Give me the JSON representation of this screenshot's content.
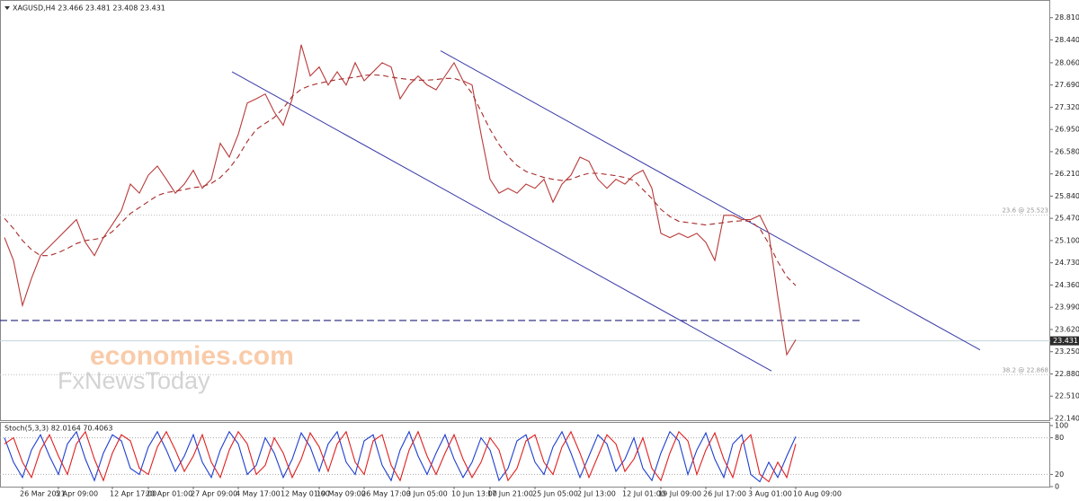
{
  "header": {
    "text": "XAGUSD,H4  23.466 23.481 23.408 23.431"
  },
  "watermark": {
    "brand": "economies.com",
    "sub": "FxNewsToday"
  },
  "chart_data": [
    {
      "type": "line",
      "categories": [
        null,
        null,
        "26 Mar 2021",
        null,
        null,
        null,
        "5 Apr 09:00",
        null,
        null,
        null,
        null,
        null,
        "12 Apr 17:00",
        null,
        null,
        null,
        "20 Apr 01:00",
        null,
        null,
        null,
        null,
        "27 Apr 09:00",
        null,
        null,
        null,
        null,
        "4 May 17:00",
        null,
        null,
        null,
        null,
        "12 May 01:00",
        null,
        null,
        null,
        "19 May 09:00",
        null,
        null,
        null,
        null,
        "26 May 17:00",
        null,
        null,
        null,
        null,
        "3 Jun 05:00",
        null,
        null,
        null,
        null,
        "10 Jun 13:00",
        null,
        null,
        null,
        "17 Jun 21:00",
        null,
        null,
        null,
        null,
        "25 Jun 05:00",
        null,
        null,
        null,
        null,
        "2 Jul 13:00",
        null,
        null,
        null,
        null,
        "12 Jul 01:00",
        null,
        null,
        null,
        "19 Jul 09:00",
        null,
        null,
        null,
        null,
        "26 Jul 17:00",
        null,
        null,
        null,
        null,
        "3 Aug 01:00",
        null,
        null,
        null,
        null,
        "10 Aug 09:00"
      ],
      "series": [
        {
          "color": "#b83a3a",
          "dashed": false,
          "values": [
            25.15,
            24.77,
            24.02,
            24.47,
            24.85,
            25.0,
            25.15,
            25.3,
            25.45,
            25.07,
            24.85,
            25.15,
            25.37,
            25.6,
            26.04,
            25.89,
            26.19,
            26.34,
            26.12,
            25.89,
            26.04,
            26.27,
            25.97,
            26.12,
            26.72,
            26.49,
            26.87,
            27.39,
            27.46,
            27.54,
            27.24,
            27.02,
            27.46,
            28.36,
            27.84,
            27.99,
            27.69,
            27.91,
            27.69,
            28.06,
            27.76,
            27.91,
            28.06,
            27.99,
            27.46,
            27.69,
            27.84,
            27.69,
            27.61,
            27.84,
            28.06,
            27.76,
            27.69,
            26.87,
            26.12,
            25.89,
            25.97,
            25.89,
            26.04,
            25.97,
            26.12,
            25.74,
            26.04,
            26.19,
            26.49,
            26.42,
            26.12,
            25.97,
            26.12,
            26.04,
            26.19,
            26.27,
            25.97,
            25.22,
            25.15,
            25.22,
            25.15,
            25.22,
            25.07,
            24.77,
            25.52,
            25.52,
            25.45,
            25.45,
            25.52,
            25.22,
            24.17,
            23.2,
            23.45
          ]
        },
        {
          "color": "#a52a2a",
          "dashed": true,
          "values": [
            25.47,
            25.3,
            25.1,
            24.95,
            24.85,
            24.85,
            24.9,
            24.97,
            25.05,
            25.1,
            25.12,
            25.15,
            25.25,
            25.4,
            25.55,
            25.65,
            25.75,
            25.85,
            25.9,
            25.92,
            25.95,
            25.98,
            26.0,
            26.05,
            26.15,
            26.3,
            26.5,
            26.75,
            26.95,
            27.05,
            27.15,
            27.3,
            27.5,
            27.62,
            27.68,
            27.72,
            27.75,
            27.78,
            27.8,
            27.82,
            27.85,
            27.86,
            27.85,
            27.82,
            27.8,
            27.78,
            27.77,
            27.77,
            27.78,
            27.8,
            27.8,
            27.75,
            27.55,
            27.25,
            26.95,
            26.7,
            26.5,
            26.35,
            26.25,
            26.2,
            26.15,
            26.12,
            26.1,
            26.12,
            26.18,
            26.22,
            26.22,
            26.2,
            26.18,
            26.15,
            26.1,
            25.95,
            25.8,
            25.62,
            25.5,
            25.42,
            25.4,
            25.38,
            25.36,
            25.38,
            25.4,
            25.42,
            25.43,
            25.42,
            25.3,
            25.05,
            24.75,
            24.5,
            24.35
          ]
        }
      ],
      "trend_lines": [
        {
          "color": "#3a3aa8",
          "x": [
            48.5,
            108.5
          ],
          "y": [
            28.26,
            23.28
          ]
        },
        {
          "color": "#3a3aa8",
          "x": [
            25.3,
            85.3
          ],
          "y": [
            27.91,
            22.93
          ]
        }
      ],
      "support_line": {
        "value": 23.77,
        "color": "#22227a",
        "dashed": true
      },
      "fib_levels": [
        {
          "value": 25.523,
          "label": "23.6 @ 25.523"
        },
        {
          "value": 22.868,
          "label": "38.2 @ 22.868"
        }
      ],
      "last_price": 23.431,
      "ylim": [
        22.11,
        29.03
      ],
      "yticks": [
        {
          "value": 28.81,
          "label": "28.810"
        },
        {
          "value": 28.44,
          "label": "28.440"
        },
        {
          "value": 28.06,
          "label": "28.060"
        },
        {
          "value": 27.69,
          "label": "27.690"
        },
        {
          "value": 27.32,
          "label": "27.320"
        },
        {
          "value": 26.95,
          "label": "26.950"
        },
        {
          "value": 26.58,
          "label": "26.580"
        },
        {
          "value": 26.21,
          "label": "26.210"
        },
        {
          "value": 25.84,
          "label": "25.840"
        },
        {
          "value": 25.47,
          "label": "25.470"
        },
        {
          "value": 25.1,
          "label": "25.100"
        },
        {
          "value": 24.73,
          "label": "24.730"
        },
        {
          "value": 24.36,
          "label": "24.360"
        },
        {
          "value": 23.99,
          "label": "23.990"
        },
        {
          "value": 23.62,
          "label": "23.620"
        },
        {
          "value": 23.25,
          "label": "23.250"
        },
        {
          "value": 22.88,
          "label": "22.880"
        },
        {
          "value": 22.51,
          "label": "22.510"
        },
        {
          "value": 22.14,
          "label": "22.140"
        }
      ]
    },
    {
      "type": "line",
      "title": "Stoch(5,3,3) 82.0164 70.4063",
      "series": [
        {
          "color": "#1f3fd0",
          "values": [
            80,
            40,
            15,
            60,
            85,
            50,
            20,
            70,
            90,
            45,
            10,
            55,
            85,
            75,
            30,
            20,
            65,
            90,
            60,
            25,
            50,
            85,
            40,
            15,
            60,
            90,
            70,
            20,
            35,
            80,
            55,
            15,
            45,
            88,
            65,
            25,
            70,
            90,
            40,
            20,
            75,
            85,
            35,
            10,
            60,
            90,
            50,
            20,
            55,
            85,
            45,
            15,
            40,
            80,
            60,
            10,
            30,
            75,
            85,
            40,
            20,
            65,
            90,
            55,
            15,
            50,
            85,
            70,
            25,
            45,
            80,
            30,
            10,
            55,
            90,
            75,
            20,
            60,
            88,
            45,
            15,
            70,
            85,
            20,
            8,
            40,
            15,
            50,
            82
          ]
        },
        {
          "color": "#e02020",
          "values": [
            70,
            80,
            40,
            15,
            60,
            85,
            50,
            20,
            70,
            90,
            45,
            10,
            55,
            85,
            75,
            30,
            20,
            65,
            90,
            60,
            25,
            50,
            85,
            40,
            15,
            60,
            90,
            70,
            20,
            35,
            80,
            55,
            15,
            45,
            88,
            65,
            25,
            70,
            90,
            40,
            20,
            75,
            85,
            35,
            10,
            60,
            90,
            50,
            20,
            55,
            85,
            45,
            15,
            40,
            80,
            60,
            10,
            30,
            75,
            85,
            40,
            20,
            65,
            90,
            55,
            15,
            50,
            85,
            70,
            25,
            45,
            80,
            30,
            10,
            55,
            90,
            75,
            20,
            60,
            88,
            45,
            15,
            70,
            85,
            20,
            8,
            40,
            15,
            70
          ]
        }
      ],
      "levels": [
        80,
        20
      ],
      "ylim": [
        0,
        100
      ],
      "yticks": [
        100,
        80,
        20,
        0
      ]
    }
  ]
}
